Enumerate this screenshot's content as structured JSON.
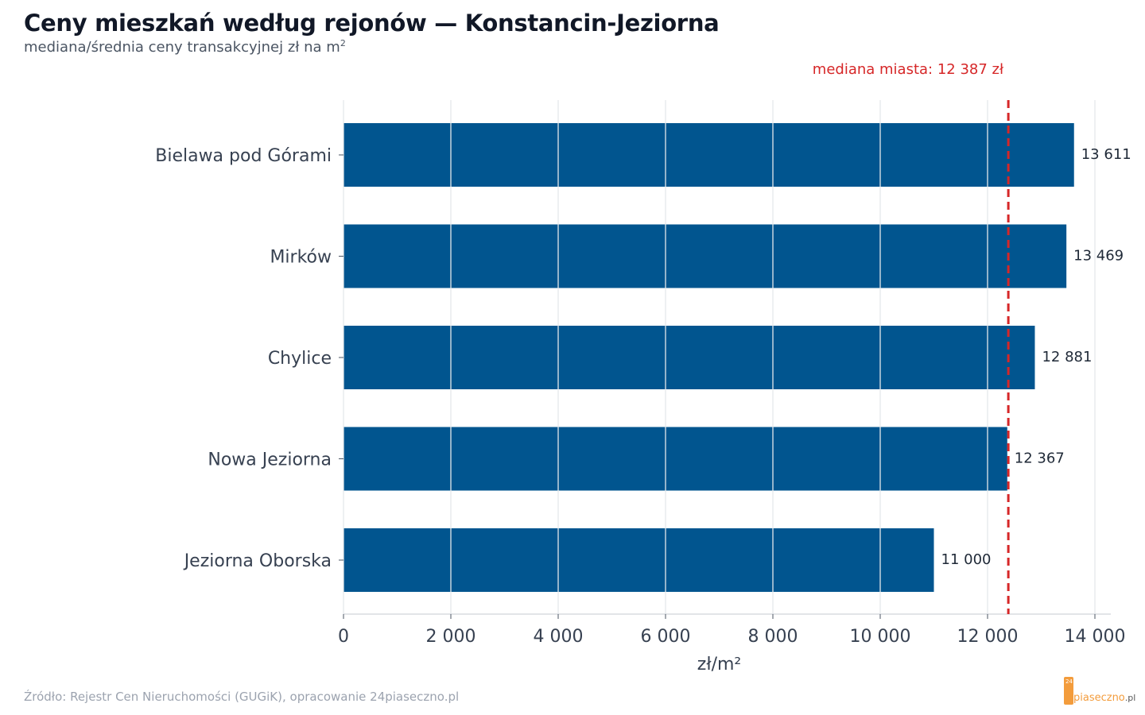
{
  "header": {
    "title": "Ceny mieszkań według rejonów — Konstancin-Jeziorna",
    "subtitle": "mediana/średnia ceny transakcyjnej zł na m",
    "subtitle_sup": "2"
  },
  "chart_data": {
    "type": "bar",
    "orientation": "horizontal",
    "categories": [
      "Bielawa pod Górami",
      "Mirków",
      "Chylice",
      "Nowa Jeziorna",
      "Jeziorna Oborska"
    ],
    "values": [
      13611,
      13469,
      12881,
      12367,
      11000
    ],
    "value_labels": [
      "13 611",
      "13 469",
      "12 881",
      "12 367",
      "11 000"
    ],
    "xlabel": "zł/m²",
    "xlim": [
      0,
      14000
    ],
    "xticks": [
      0,
      2000,
      4000,
      6000,
      8000,
      10000,
      12000,
      14000
    ],
    "xtick_labels": [
      "0",
      "2 000",
      "4 000",
      "6 000",
      "8 000",
      "10 000",
      "12 000",
      "14 000"
    ],
    "grid": "vertical",
    "reference_line": {
      "value": 12387,
      "label": "mediana miasta: 12 387 zł",
      "style": "dashed",
      "color": "#d62728"
    },
    "bar_color": "#01558f"
  },
  "footer": {
    "source": "Źródło: Rejestr Cen Nieruchomości (GUGiK), opracowanie 24piaseczno.pl"
  },
  "logo": {
    "badge": "24",
    "name": "piaseczno",
    "tld": ".pl"
  }
}
